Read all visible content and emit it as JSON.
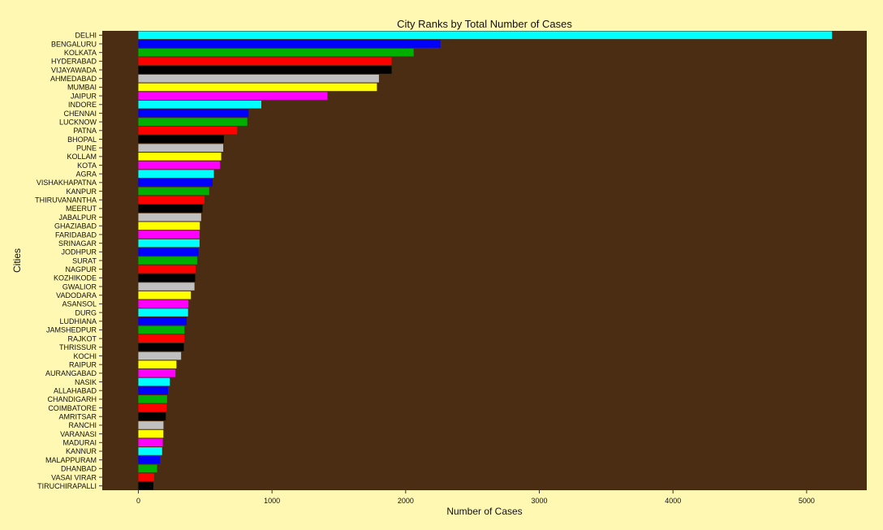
{
  "chart_data": {
    "type": "bar",
    "orientation": "horizontal",
    "title": "City Ranks by Total Number of Cases",
    "xlabel": "Number of Cases",
    "ylabel": "Cities",
    "xlim": [
      -270,
      5450
    ],
    "xticks": [
      0,
      1000,
      2000,
      3000,
      4000,
      5000
    ],
    "grid": false,
    "legend": "none",
    "colors": {
      "page_background": "#fff8b2",
      "panel_background": "#4a2d12",
      "bar_palette": [
        "#00ffff",
        "#0000ff",
        "#00b000",
        "#ff0000",
        "#000000",
        "#c0c0c0",
        "#ffff00",
        "#ff00ff"
      ]
    },
    "categories": [
      "DELHI",
      "BENGALURU",
      "KOLKATA",
      "HYDERABAD",
      "VIJAYAWADA",
      "AHMEDABAD",
      "MUMBAI",
      "JAIPUR",
      "INDORE",
      "CHENNAI",
      "LUCKNOW",
      "PATNA",
      "BHOPAL",
      "PUNE",
      "KOLLAM",
      "KOTA",
      "AGRA",
      "VISHAKHAPATNA",
      "KANPUR",
      "THIRUVANANTHA",
      "MEERUT",
      "JABALPUR",
      "GHAZIABAD",
      "FARIDABAD",
      "SRINAGAR",
      "JODHPUR",
      "SURAT",
      "NAGPUR",
      "KOZHIKODE",
      "GWALIOR",
      "VADODARA",
      "ASANSOL",
      "DURG",
      "LUDHIANA",
      "JAMSHEDPUR",
      "RAJKOT",
      "THRISSUR",
      "KOCHI",
      "RAIPUR",
      "AURANGABAD",
      "NASIK",
      "ALLAHABAD",
      "CHANDIGARH",
      "COIMBATORE",
      "AMRITSAR",
      "RANCHI",
      "VARANASI",
      "MADURAI",
      "KANNUR",
      "MALAPPURAM",
      "DHANBAD",
      "VASAI VIRAR",
      "TIRUCHIRAPALLI"
    ],
    "values": [
      5190,
      2260,
      2060,
      1895,
      1895,
      1800,
      1785,
      1415,
      920,
      825,
      815,
      740,
      640,
      635,
      620,
      610,
      565,
      555,
      530,
      495,
      480,
      470,
      460,
      458,
      458,
      450,
      440,
      428,
      425,
      420,
      393,
      375,
      372,
      362,
      345,
      345,
      340,
      320,
      285,
      278,
      235,
      222,
      215,
      212,
      205,
      188,
      187,
      183,
      178,
      162,
      140,
      118,
      112
    ]
  }
}
